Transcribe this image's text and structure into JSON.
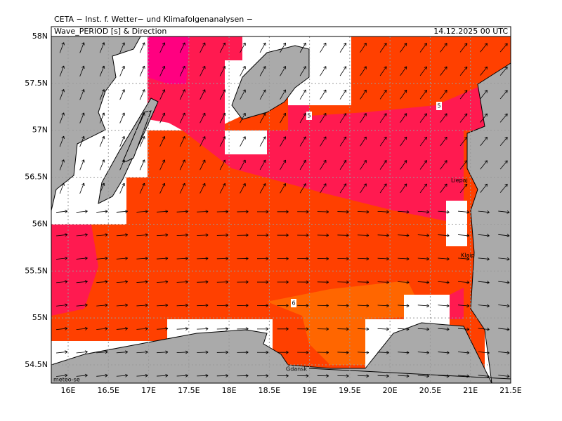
{
  "header": {
    "source": "CETA − Inst. f. Wetter− und Klimafolgenanalysen −",
    "title": "Wave_PERIOD [s] & Direction",
    "date": "14.12.2025 00 UTC"
  },
  "map": {
    "longitude_labels": [
      "16E",
      "16.5E",
      "17E",
      "17.5E",
      "18E",
      "18.5E",
      "19E",
      "19.5E",
      "20E",
      "20.5E",
      "21E",
      "21.5E"
    ],
    "latitude_labels": [
      "58N",
      "57.5N",
      "57N",
      "56.5N",
      "56N",
      "55.5N",
      "55N",
      "54.5N"
    ],
    "contour_labels": [
      "5",
      "5",
      "6"
    ],
    "places": [
      "Liepaj",
      "Klaip",
      "Gdansk"
    ],
    "credit": "meteo-se"
  }
}
